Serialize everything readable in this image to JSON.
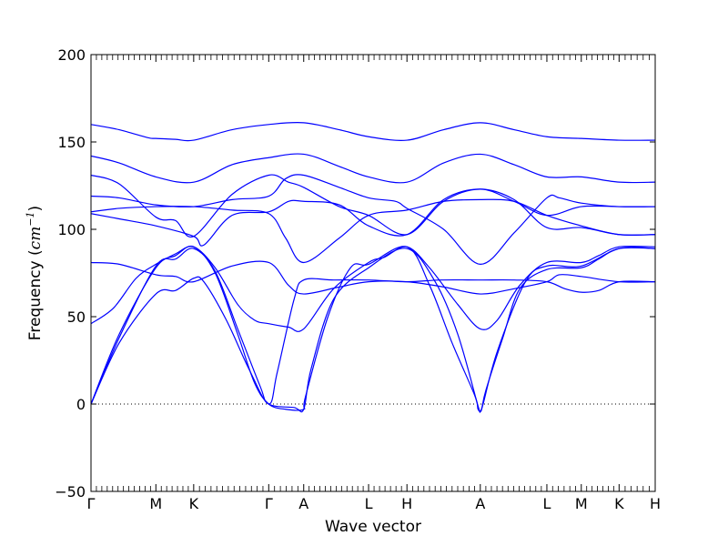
{
  "chart_data": {
    "type": "line",
    "title": "",
    "xlabel": "Wave vector",
    "ylabel": "Frequency (",
    "ylabel_unit": "cm",
    "ylabel_unit_exp": "−1",
    "ylabel_suffix": ")",
    "ylim": [
      -50,
      200
    ],
    "yticks": [
      -50,
      0,
      50,
      100,
      150,
      200
    ],
    "ytick_labels": [
      "−50",
      "0",
      "50",
      "100",
      "150",
      "200"
    ],
    "xlim": [
      0,
      1
    ],
    "x_high_symmetry_points": [
      {
        "label": "Γ",
        "x": 0.0
      },
      {
        "label": "M",
        "x": 0.115
      },
      {
        "label": "K",
        "x": 0.182
      },
      {
        "label": "Γ",
        "x": 0.315
      },
      {
        "label": "A",
        "x": 0.377
      },
      {
        "label": "L",
        "x": 0.492
      },
      {
        "label": "H",
        "x": 0.56
      },
      {
        "label": "A",
        "x": 0.69
      },
      {
        "label": "L",
        "x": 0.808
      },
      {
        "label": "M",
        "x": 0.869
      },
      {
        "label": "K",
        "x": 0.936
      },
      {
        "label": "H",
        "x": 1.0
      }
    ],
    "zero_line": true,
    "line_color": "#0000ff",
    "series": [
      {
        "points": [
          [
            0,
            160
          ],
          [
            0.05,
            157
          ],
          [
            0.1,
            152.5
          ],
          [
            0.115,
            152
          ],
          [
            0.15,
            151.5
          ],
          [
            0.182,
            151
          ],
          [
            0.25,
            157
          ],
          [
            0.315,
            160
          ],
          [
            0.377,
            161
          ],
          [
            0.44,
            157
          ],
          [
            0.492,
            153
          ],
          [
            0.56,
            151
          ],
          [
            0.625,
            157
          ],
          [
            0.69,
            161
          ],
          [
            0.75,
            157
          ],
          [
            0.808,
            153
          ],
          [
            0.869,
            152
          ],
          [
            0.936,
            151
          ],
          [
            1.0,
            151
          ]
        ]
      },
      {
        "points": [
          [
            0,
            142
          ],
          [
            0.05,
            138
          ],
          [
            0.115,
            130
          ],
          [
            0.182,
            127
          ],
          [
            0.25,
            137
          ],
          [
            0.315,
            141
          ],
          [
            0.377,
            143
          ],
          [
            0.44,
            136
          ],
          [
            0.492,
            130
          ],
          [
            0.56,
            127
          ],
          [
            0.625,
            138
          ],
          [
            0.69,
            143
          ],
          [
            0.75,
            137
          ],
          [
            0.808,
            130
          ],
          [
            0.869,
            130
          ],
          [
            0.936,
            127
          ],
          [
            1.0,
            127
          ]
        ]
      },
      {
        "points": [
          [
            0,
            131
          ],
          [
            0.05,
            126
          ],
          [
            0.115,
            107
          ],
          [
            0.15,
            105
          ],
          [
            0.182,
            96
          ],
          [
            0.25,
            120
          ],
          [
            0.315,
            131
          ],
          [
            0.35,
            127
          ],
          [
            0.377,
            124
          ],
          [
            0.44,
            113
          ],
          [
            0.492,
            108
          ],
          [
            0.56,
            97
          ],
          [
            0.625,
            116
          ],
          [
            0.69,
            123
          ],
          [
            0.75,
            116
          ],
          [
            0.808,
            108
          ],
          [
            0.869,
            113
          ],
          [
            0.936,
            113
          ],
          [
            1.0,
            113
          ]
        ]
      },
      {
        "points": [
          [
            0,
            119
          ],
          [
            0.05,
            118
          ],
          [
            0.115,
            114
          ],
          [
            0.182,
            113
          ],
          [
            0.25,
            117
          ],
          [
            0.315,
            119
          ],
          [
            0.345,
            129
          ],
          [
            0.377,
            131
          ],
          [
            0.44,
            124
          ],
          [
            0.492,
            118
          ],
          [
            0.54,
            116
          ],
          [
            0.56,
            112
          ],
          [
            0.625,
            100
          ],
          [
            0.69,
            80
          ],
          [
            0.75,
            98
          ],
          [
            0.808,
            118
          ],
          [
            0.83,
            118
          ],
          [
            0.869,
            115
          ],
          [
            0.936,
            113
          ],
          [
            1.0,
            113
          ]
        ]
      },
      {
        "points": [
          [
            0,
            110
          ],
          [
            0.05,
            112
          ],
          [
            0.115,
            113
          ],
          [
            0.182,
            113
          ],
          [
            0.25,
            111
          ],
          [
            0.315,
            109
          ],
          [
            0.345,
            95
          ],
          [
            0.377,
            81
          ],
          [
            0.44,
            95
          ],
          [
            0.492,
            108
          ],
          [
            0.56,
            111
          ],
          [
            0.625,
            116
          ],
          [
            0.69,
            117
          ],
          [
            0.75,
            116
          ],
          [
            0.808,
            108
          ],
          [
            0.869,
            102
          ],
          [
            0.936,
            97
          ],
          [
            1.0,
            97
          ]
        ]
      },
      {
        "points": [
          [
            0,
            109
          ],
          [
            0.05,
            106
          ],
          [
            0.115,
            102
          ],
          [
            0.182,
            96
          ],
          [
            0.2,
            91
          ],
          [
            0.25,
            108
          ],
          [
            0.315,
            110
          ],
          [
            0.35,
            116
          ],
          [
            0.377,
            116
          ],
          [
            0.44,
            114
          ],
          [
            0.492,
            102
          ],
          [
            0.56,
            97
          ],
          [
            0.625,
            117
          ],
          [
            0.69,
            123
          ],
          [
            0.75,
            117
          ],
          [
            0.808,
            101
          ],
          [
            0.869,
            101
          ],
          [
            0.936,
            97
          ],
          [
            1.0,
            97
          ]
        ]
      },
      {
        "points": [
          [
            0,
            81
          ],
          [
            0.05,
            80
          ],
          [
            0.115,
            74
          ],
          [
            0.15,
            73
          ],
          [
            0.182,
            70
          ],
          [
            0.25,
            79
          ],
          [
            0.315,
            81
          ],
          [
            0.35,
            68
          ],
          [
            0.377,
            63
          ],
          [
            0.44,
            67
          ],
          [
            0.492,
            70
          ],
          [
            0.56,
            70
          ],
          [
            0.625,
            67
          ],
          [
            0.69,
            63
          ],
          [
            0.75,
            66
          ],
          [
            0.808,
            70
          ],
          [
            0.83,
            74
          ],
          [
            0.869,
            73
          ],
          [
            0.936,
            70
          ],
          [
            1.0,
            70
          ]
        ]
      },
      {
        "points": [
          [
            0,
            46
          ],
          [
            0.04,
            55
          ],
          [
            0.08,
            72
          ],
          [
            0.115,
            80
          ],
          [
            0.15,
            86
          ],
          [
            0.182,
            90
          ],
          [
            0.22,
            78
          ],
          [
            0.26,
            57
          ],
          [
            0.29,
            48
          ],
          [
            0.315,
            46
          ],
          [
            0.35,
            44
          ],
          [
            0.377,
            43
          ],
          [
            0.43,
            66
          ],
          [
            0.492,
            81
          ],
          [
            0.52,
            84
          ],
          [
            0.56,
            90
          ],
          [
            0.6,
            78
          ],
          [
            0.65,
            57
          ],
          [
            0.69,
            43
          ],
          [
            0.72,
            48
          ],
          [
            0.76,
            68
          ],
          [
            0.808,
            81
          ],
          [
            0.869,
            81
          ],
          [
            0.9,
            85
          ],
          [
            0.936,
            90
          ],
          [
            1.0,
            90
          ]
        ]
      },
      {
        "points": [
          [
            0,
            0
          ],
          [
            0.05,
            40
          ],
          [
            0.115,
            78
          ],
          [
            0.15,
            85
          ],
          [
            0.182,
            90
          ],
          [
            0.22,
            75
          ],
          [
            0.26,
            40
          ],
          [
            0.29,
            12
          ],
          [
            0.315,
            0
          ],
          [
            0.345,
            -3
          ],
          [
            0.377,
            -3
          ],
          [
            0.38,
            4
          ],
          [
            0.42,
            50
          ],
          [
            0.46,
            78
          ],
          [
            0.492,
            80
          ],
          [
            0.56,
            90
          ],
          [
            0.6,
            68
          ],
          [
            0.64,
            35
          ],
          [
            0.68,
            5
          ],
          [
            0.686,
            -3
          ],
          [
            0.692,
            -3
          ],
          [
            0.7,
            8
          ],
          [
            0.73,
            38
          ],
          [
            0.76,
            66
          ],
          [
            0.808,
            77
          ],
          [
            0.869,
            78
          ],
          [
            0.9,
            83
          ],
          [
            0.936,
            89
          ],
          [
            1.0,
            89
          ]
        ]
      },
      {
        "points": [
          [
            0,
            0
          ],
          [
            0.05,
            35
          ],
          [
            0.115,
            63
          ],
          [
            0.15,
            65
          ],
          [
            0.182,
            72
          ],
          [
            0.2,
            70
          ],
          [
            0.24,
            48
          ],
          [
            0.28,
            20
          ],
          [
            0.315,
            0
          ],
          [
            0.33,
            18
          ],
          [
            0.36,
            60
          ],
          [
            0.377,
            71
          ],
          [
            0.43,
            71
          ],
          [
            0.492,
            71
          ],
          [
            0.56,
            70
          ],
          [
            0.62,
            71
          ],
          [
            0.69,
            71
          ],
          [
            0.75,
            71
          ],
          [
            0.808,
            70
          ],
          [
            0.84,
            66
          ],
          [
            0.869,
            64
          ],
          [
            0.9,
            65
          ],
          [
            0.936,
            70
          ],
          [
            1.0,
            70
          ]
        ]
      },
      {
        "points": [
          [
            0,
            0
          ],
          [
            0.05,
            38
          ],
          [
            0.115,
            79
          ],
          [
            0.15,
            83
          ],
          [
            0.182,
            89
          ],
          [
            0.22,
            76
          ],
          [
            0.26,
            43
          ],
          [
            0.3,
            10
          ],
          [
            0.315,
            0
          ],
          [
            0.36,
            -2
          ],
          [
            0.377,
            -3
          ],
          [
            0.39,
            20
          ],
          [
            0.43,
            60
          ],
          [
            0.492,
            78
          ],
          [
            0.56,
            89
          ],
          [
            0.61,
            70
          ],
          [
            0.65,
            40
          ],
          [
            0.685,
            0
          ],
          [
            0.69,
            -4
          ],
          [
            0.695,
            0
          ],
          [
            0.72,
            30
          ],
          [
            0.77,
            70
          ],
          [
            0.808,
            79
          ],
          [
            0.869,
            79
          ],
          [
            0.936,
            89
          ],
          [
            1.0,
            89
          ]
        ]
      }
    ]
  }
}
